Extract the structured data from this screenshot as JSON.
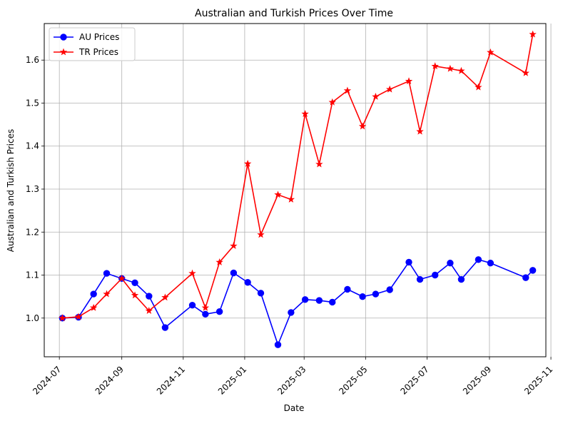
{
  "chart_data": {
    "type": "line",
    "title": "Australian and Turkish Prices Over Time",
    "xlabel": "Date",
    "ylabel": "Australian and Turkish Prices",
    "xlim": [
      "2024-06-16",
      "2025-10-27"
    ],
    "ylim": [
      0.91,
      1.685
    ],
    "x_ticks": [
      "2024-07",
      "2024-09",
      "2024-11",
      "2025-01",
      "2025-03",
      "2025-05",
      "2025-07",
      "2025-09",
      "2025-11"
    ],
    "y_ticks": [
      1.0,
      1.1,
      1.2,
      1.3,
      1.4,
      1.5,
      1.6
    ],
    "grid": true,
    "legend_position": "upper-left",
    "series": [
      {
        "name": "AU Prices",
        "color": "#0000ff",
        "marker": "circle",
        "points": [
          [
            "2024-07-04",
            1.0
          ],
          [
            "2024-07-20",
            1.002
          ],
          [
            "2024-08-04",
            1.056
          ],
          [
            "2024-08-17",
            1.104
          ],
          [
            "2024-09-01",
            1.092
          ],
          [
            "2024-09-14",
            1.082
          ],
          [
            "2024-09-28",
            1.051
          ],
          [
            "2024-10-14",
            0.978
          ],
          [
            "2024-11-10",
            1.03
          ],
          [
            "2024-11-23",
            1.009
          ],
          [
            "2024-12-07",
            1.015
          ],
          [
            "2024-12-21",
            1.105
          ],
          [
            "2025-01-04",
            1.083
          ],
          [
            "2025-01-17",
            1.058
          ],
          [
            "2025-02-03",
            0.938
          ],
          [
            "2025-02-16",
            1.013
          ],
          [
            "2025-03-02",
            1.043
          ],
          [
            "2025-03-16",
            1.041
          ],
          [
            "2025-03-29",
            1.037
          ],
          [
            "2025-04-13",
            1.067
          ],
          [
            "2025-04-28",
            1.05
          ],
          [
            "2025-05-11",
            1.056
          ],
          [
            "2025-05-25",
            1.066
          ],
          [
            "2025-06-13",
            1.13
          ],
          [
            "2025-06-24",
            1.09
          ],
          [
            "2025-07-09",
            1.1
          ],
          [
            "2025-07-24",
            1.128
          ],
          [
            "2025-08-04",
            1.09
          ],
          [
            "2025-08-21",
            1.136
          ],
          [
            "2025-09-02",
            1.128
          ],
          [
            "2025-10-07",
            1.094
          ],
          [
            "2025-10-14",
            1.111
          ]
        ]
      },
      {
        "name": "TR Prices",
        "color": "#ff0000",
        "marker": "star",
        "points": [
          [
            "2024-07-04",
            1.0
          ],
          [
            "2024-07-20",
            1.003
          ],
          [
            "2024-08-04",
            1.024
          ],
          [
            "2024-08-17",
            1.056
          ],
          [
            "2024-09-01",
            1.092
          ],
          [
            "2024-09-14",
            1.053
          ],
          [
            "2024-09-28",
            1.017
          ],
          [
            "2024-10-14",
            1.048
          ],
          [
            "2024-11-10",
            1.104
          ],
          [
            "2024-11-23",
            1.024
          ],
          [
            "2024-12-07",
            1.13
          ],
          [
            "2024-12-21",
            1.168
          ],
          [
            "2025-01-04",
            1.359
          ],
          [
            "2025-01-17",
            1.194
          ],
          [
            "2025-02-03",
            1.287
          ],
          [
            "2025-02-16",
            1.276
          ],
          [
            "2025-03-02",
            1.475
          ],
          [
            "2025-03-16",
            1.358
          ],
          [
            "2025-03-29",
            1.502
          ],
          [
            "2025-04-13",
            1.529
          ],
          [
            "2025-04-28",
            1.446
          ],
          [
            "2025-05-11",
            1.515
          ],
          [
            "2025-05-25",
            1.532
          ],
          [
            "2025-06-13",
            1.551
          ],
          [
            "2025-06-24",
            1.434
          ],
          [
            "2025-07-09",
            1.586
          ],
          [
            "2025-07-24",
            1.58
          ],
          [
            "2025-08-04",
            1.575
          ],
          [
            "2025-08-21",
            1.537
          ],
          [
            "2025-09-02",
            1.618
          ],
          [
            "2025-10-07",
            1.57
          ],
          [
            "2025-10-14",
            1.66
          ]
        ]
      }
    ]
  }
}
